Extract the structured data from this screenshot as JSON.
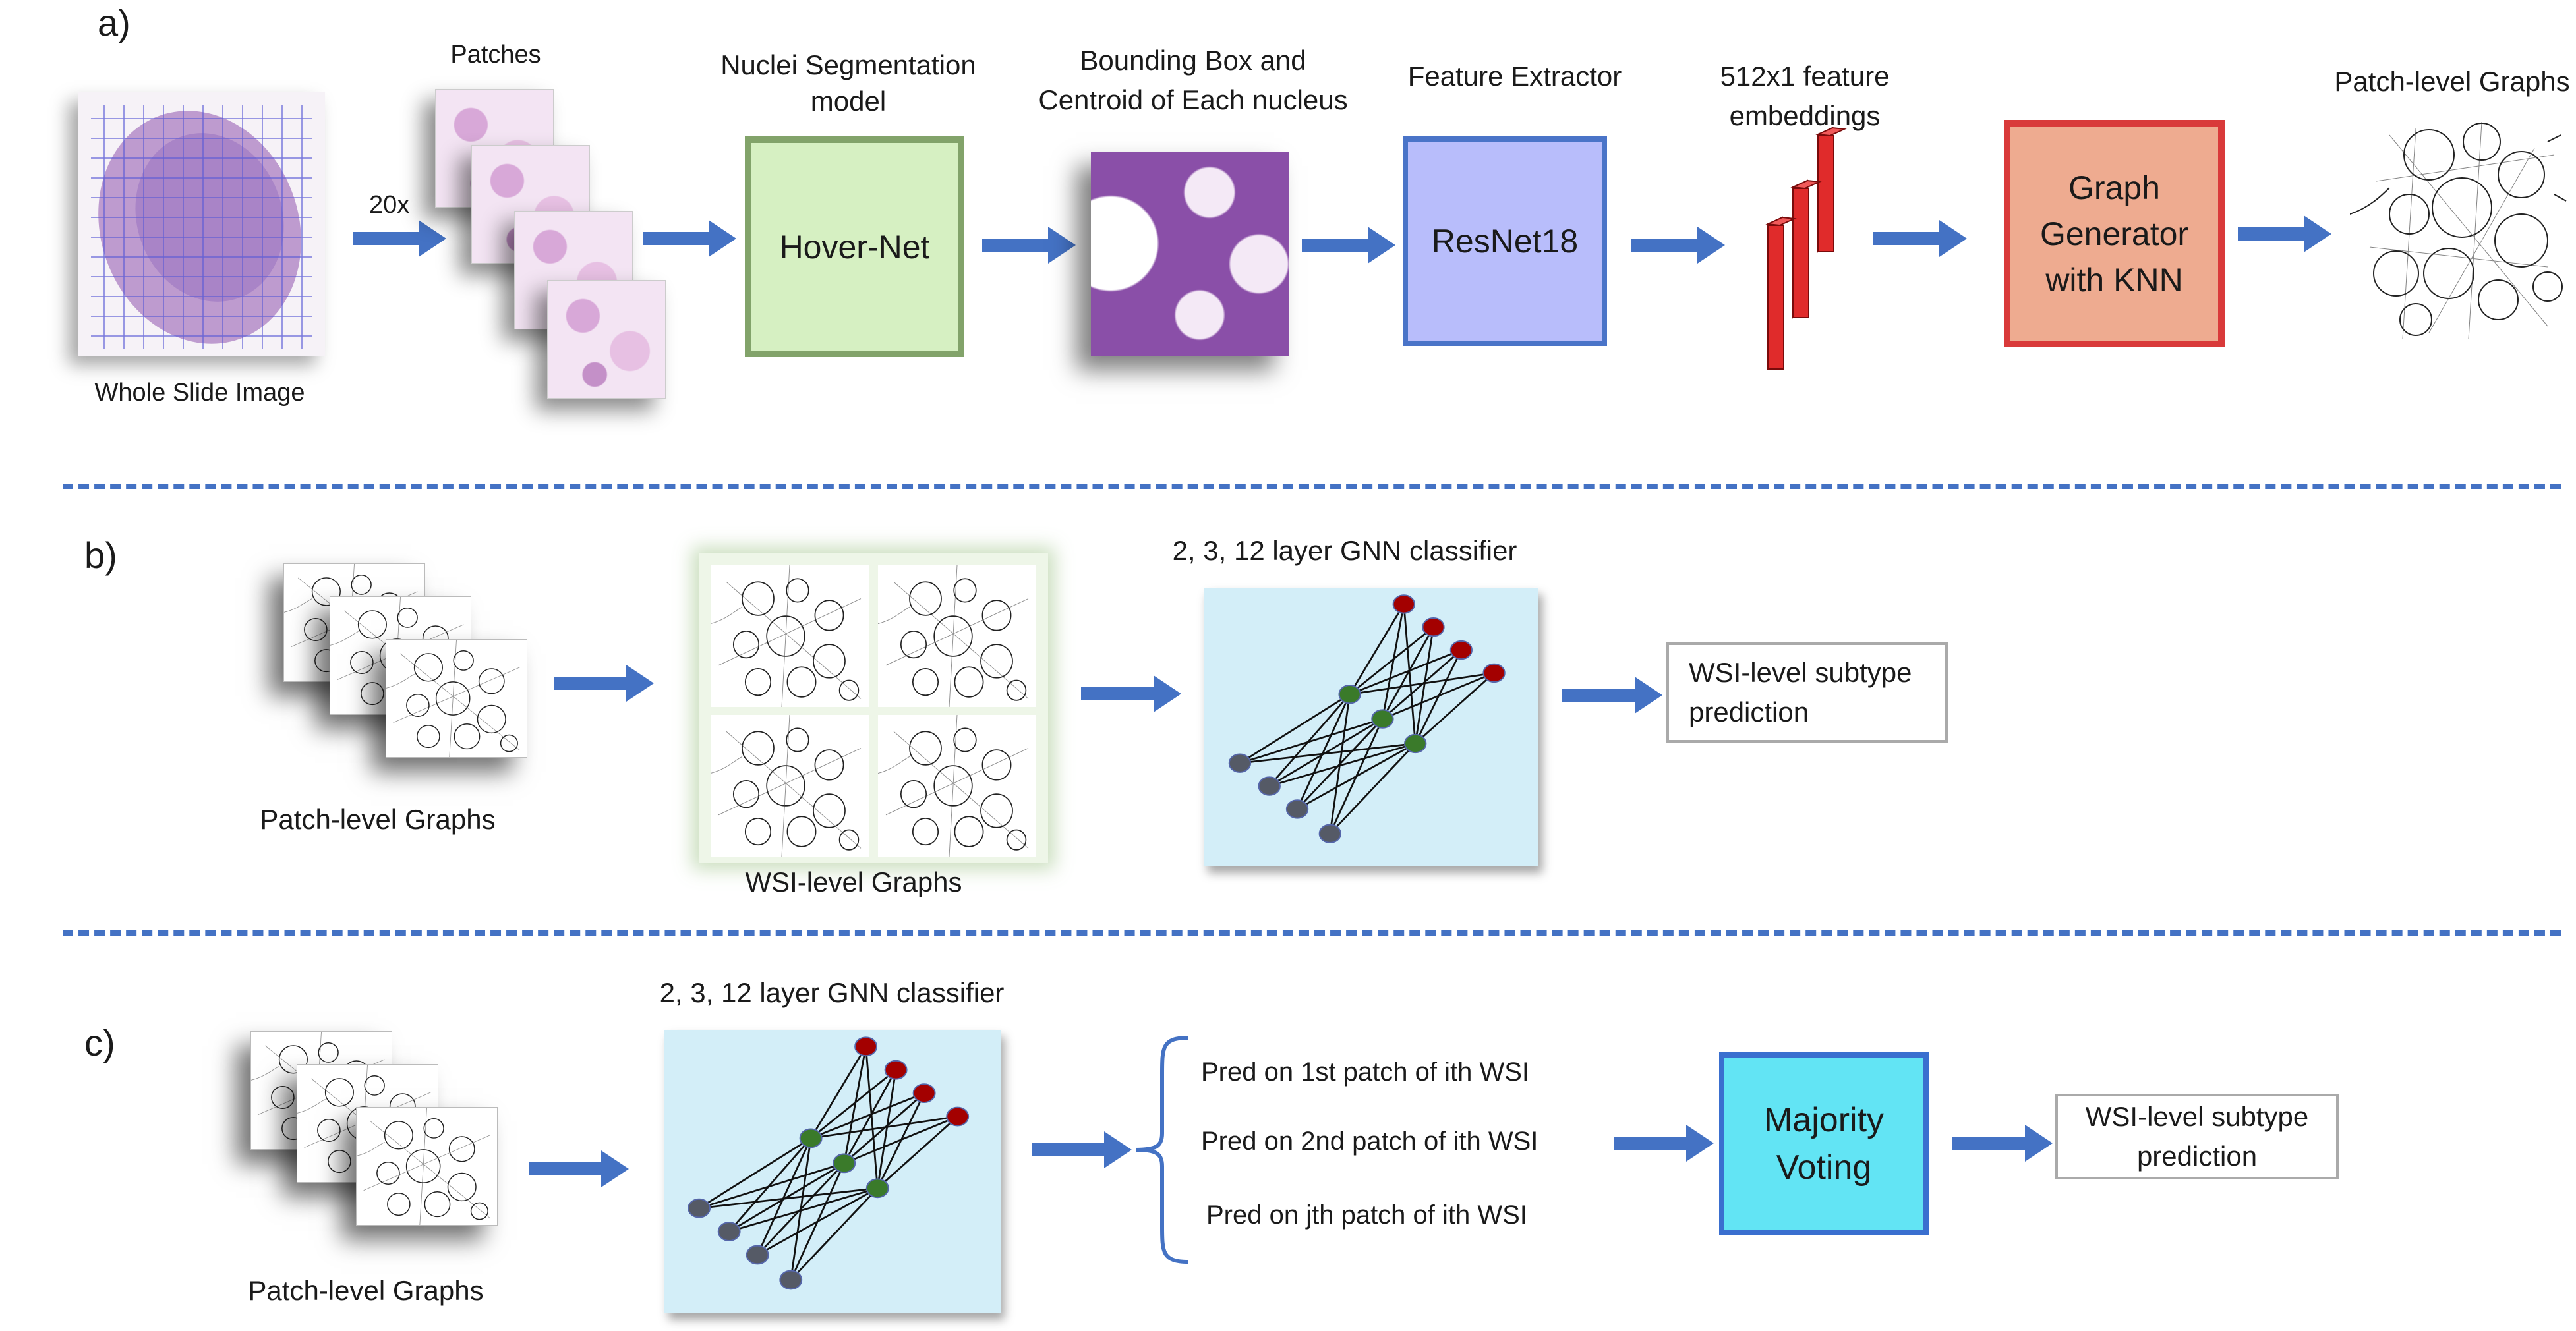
{
  "panel_a": {
    "label": "a)",
    "whole_slide_caption": "Whole Slide Image",
    "magnification": "20x",
    "patches_caption": "Patches",
    "seg_model_title_line1": "Nuclei Segmentation",
    "seg_model_title_line2": "model",
    "seg_model_box": "Hover-Net",
    "bbox_title_line1": "Bounding Box and",
    "bbox_title_line2": "Centroid of Each nucleus",
    "extractor_title": "Feature Extractor",
    "extractor_box": "ResNet18",
    "embedding_title_line1": "512x1 feature",
    "embedding_title_line2": "embeddings",
    "generator_line1": "Graph",
    "generator_line2": "Generator",
    "generator_line3": "with KNN",
    "output_title": "Patch-level Graphs"
  },
  "panel_b": {
    "label": "b)",
    "patch_graphs_caption": "Patch-level Graphs",
    "wsi_graphs_caption": "WSI-level Graphs",
    "gnn_title": "2, 3, 12 layer GNN classifier",
    "prediction_line1": "WSI-level subtype",
    "prediction_line2": "prediction"
  },
  "panel_c": {
    "label": "c)",
    "patch_graphs_caption": "Patch-level Graphs",
    "gnn_title": "2, 3, 12 layer GNN classifier",
    "pred_1": "Pred on 1st patch of  ith WSI",
    "pred_2": "Pred on 2nd patch of  ith WSI",
    "pred_j": "Pred on jth patch of  ith WSI",
    "voting_line1": "Majority",
    "voting_line2": "Voting",
    "prediction_line1": "WSI-level subtype",
    "prediction_line2": "prediction"
  },
  "colors": {
    "arrow": "#4472c4",
    "hovernet_fill": "#d6f0c2",
    "hovernet_border": "#82a36a",
    "resnet_fill": "#b8bdfb",
    "resnet_border": "#4a74c8",
    "generator_fill": "#eeab90",
    "generator_border": "#d93a3a",
    "voting_fill": "#62e4f4",
    "voting_border": "#3a6fcf",
    "gnn_panel": "#d3eef8",
    "node_output": "#a30000",
    "node_hidden": "#3a7a2a",
    "node_input": "#555a66"
  }
}
